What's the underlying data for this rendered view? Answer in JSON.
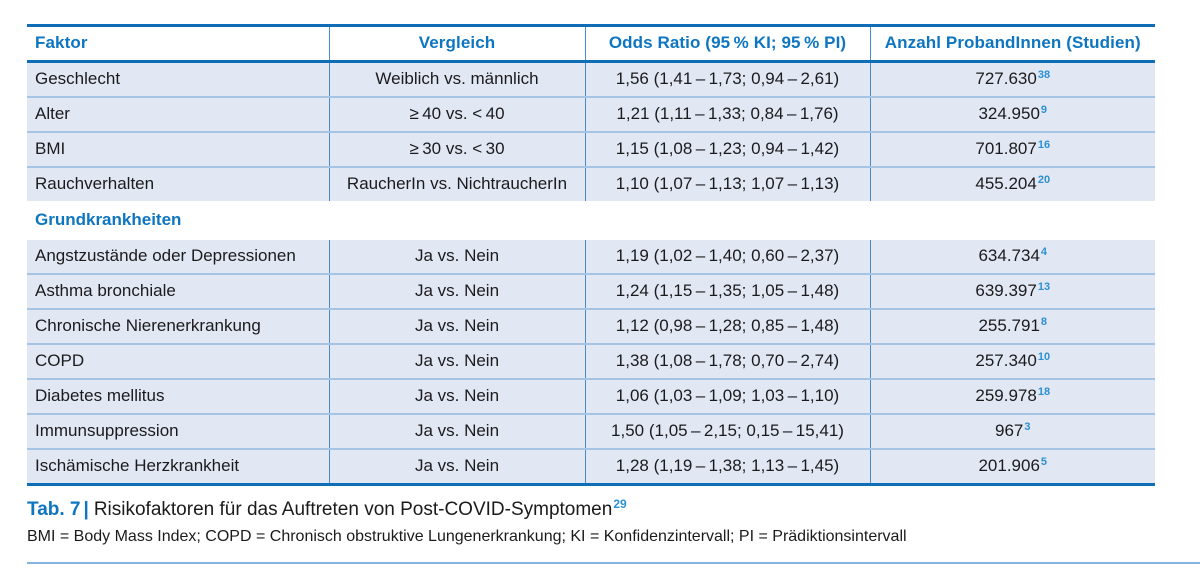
{
  "colors": {
    "heading_blue": "#0e76c0",
    "strong_border_blue": "#0e6db6",
    "row_background": "#e2e7f4",
    "row_separator": "#a5c3e3",
    "column_divider": "#4a8cc7",
    "superscript_blue": "#2b91d2",
    "footer_rule_blue": "#83b4e1",
    "text": "#1b1b1d"
  },
  "table": {
    "columns": [
      "Faktor",
      "Vergleich",
      "Odds Ratio (95 % KI; 95 % PI)",
      "Anzahl ProbandInnen (Studien)"
    ],
    "section_header": "Grundkrankheiten",
    "rows": [
      {
        "faktor": "Geschlecht",
        "vergleich": "Weiblich vs. männlich",
        "odds_ratio": "1,56 (1,41 – 1,73; 0,94 – 2,61)",
        "anzahl": "727.630",
        "studien": "38"
      },
      {
        "faktor": "Alter",
        "vergleich": "≥ 40 vs. < 40",
        "odds_ratio": "1,21 (1,11 – 1,33; 0,84 – 1,76)",
        "anzahl": "324.950",
        "studien": "9"
      },
      {
        "faktor": "BMI",
        "vergleich": "≥ 30 vs. < 30",
        "odds_ratio": "1,15 (1,08 – 1,23; 0,94 – 1,42)",
        "anzahl": "701.807",
        "studien": "16"
      },
      {
        "faktor": "Rauchverhalten",
        "vergleich": "RaucherIn vs. NichtraucherIn",
        "odds_ratio": "1,10 (1,07 – 1,13; 1,07 – 1,13)",
        "anzahl": "455.204",
        "studien": "20"
      },
      {
        "faktor": "Angstzustände oder Depressionen",
        "vergleich": "Ja vs. Nein",
        "odds_ratio": "1,19 (1,02 – 1,40; 0,60 – 2,37)",
        "anzahl": "634.734",
        "studien": "4"
      },
      {
        "faktor": "Asthma bronchiale",
        "vergleich": "Ja vs. Nein",
        "odds_ratio": "1,24 (1,15 – 1,35; 1,05 – 1,48)",
        "anzahl": "639.397",
        "studien": "13"
      },
      {
        "faktor": "Chronische Nierenerkrankung",
        "vergleich": "Ja vs. Nein",
        "odds_ratio": "1,12 (0,98 – 1,28; 0,85 – 1,48)",
        "anzahl": "255.791",
        "studien": "8"
      },
      {
        "faktor": "COPD",
        "vergleich": "Ja vs. Nein",
        "odds_ratio": "1,38 (1,08 – 1,78; 0,70 – 2,74)",
        "anzahl": "257.340",
        "studien": "10"
      },
      {
        "faktor": "Diabetes mellitus",
        "vergleich": "Ja vs. Nein",
        "odds_ratio": "1,06 (1,03 – 1,09; 1,03 – 1,10)",
        "anzahl": "259.978",
        "studien": "18"
      },
      {
        "faktor": "Immunsuppression",
        "vergleich": "Ja vs. Nein",
        "odds_ratio": "1,50 (1,05 – 2,15; 0,15 – 15,41)",
        "anzahl": "967",
        "studien": "3"
      },
      {
        "faktor": "Ischämische Herzkrankheit",
        "vergleich": "Ja vs. Nein",
        "odds_ratio": "1,28 (1,19 – 1,38; 1,13 – 1,45)",
        "anzahl": "201.906",
        "studien": "5"
      }
    ]
  },
  "caption": {
    "tab_label": "Tab. 7",
    "separator": "|",
    "title": "Risikofaktoren für das Auftreten von Post-COVID-Symptomen",
    "reference": "29"
  },
  "footnote": "BMI = Body Mass Index; COPD = Chronisch obstruktive Lungenerkrankung; KI = Konfidenzintervall; PI = Prädiktionsintervall"
}
